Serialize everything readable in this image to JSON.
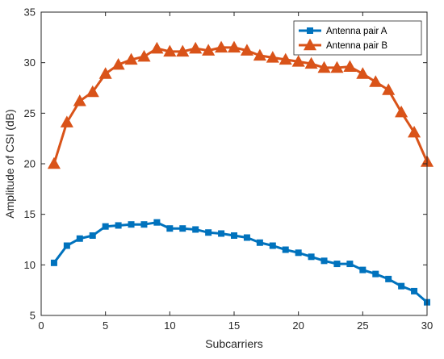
{
  "chart_data": {
    "type": "line",
    "title": "",
    "xlabel": "Subcarriers",
    "ylabel": "Amplitude of CSI (dB)",
    "xlim": [
      0,
      30
    ],
    "ylim": [
      5,
      35
    ],
    "xticks": [
      0,
      5,
      10,
      15,
      20,
      25,
      30
    ],
    "yticks": [
      5,
      10,
      15,
      20,
      25,
      30,
      35
    ],
    "grid": false,
    "legend_position": "top-right",
    "x": [
      1,
      2,
      3,
      4,
      5,
      6,
      7,
      8,
      9,
      10,
      11,
      12,
      13,
      14,
      15,
      16,
      17,
      18,
      19,
      20,
      21,
      22,
      23,
      24,
      25,
      26,
      27,
      28,
      29,
      30
    ],
    "series": [
      {
        "name": "Antenna pair A",
        "color": "#0072BD",
        "marker": "square",
        "values": [
          10.2,
          11.9,
          12.6,
          12.9,
          13.8,
          13.9,
          14.0,
          14.0,
          14.2,
          13.6,
          13.6,
          13.5,
          13.2,
          13.1,
          12.9,
          12.7,
          12.2,
          11.9,
          11.5,
          11.2,
          10.8,
          10.4,
          10.1,
          10.1,
          9.5,
          9.1,
          8.6,
          7.9,
          7.4,
          6.3
        ]
      },
      {
        "name": "Antenna pair B",
        "color": "#D95319",
        "marker": "triangle",
        "values": [
          20.0,
          24.1,
          26.2,
          27.1,
          28.9,
          29.8,
          30.3,
          30.6,
          31.4,
          31.1,
          31.1,
          31.4,
          31.2,
          31.5,
          31.5,
          31.2,
          30.7,
          30.5,
          30.3,
          30.1,
          29.9,
          29.5,
          29.5,
          29.6,
          28.9,
          28.1,
          27.3,
          25.1,
          23.1,
          20.2
        ]
      }
    ]
  }
}
